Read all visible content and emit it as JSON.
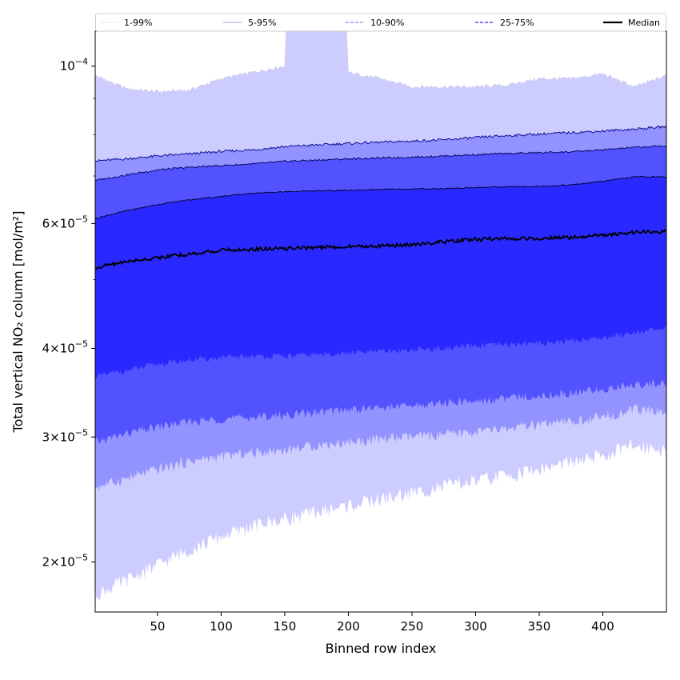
{
  "chart_data": {
    "type": "area",
    "title": "",
    "xlabel": "Binned row index",
    "ylabel": "Total vertical NO₂ column [mol/m²]",
    "xlim": [
      1,
      450
    ],
    "ylim": [
      1.7e-05,
      0.000112
    ],
    "yscale": "log",
    "x_ticks": [
      50,
      100,
      150,
      200,
      250,
      300,
      350,
      400
    ],
    "y_ticks": [
      {
        "value": 0.0001,
        "base": "10",
        "exp": "−4",
        "mant": ""
      },
      {
        "value": 6e-05,
        "mant": "6",
        "base": "10",
        "exp": "−5"
      },
      {
        "value": 4e-05,
        "mant": "4",
        "base": "10",
        "exp": "−5"
      },
      {
        "value": 3e-05,
        "mant": "3",
        "base": "10",
        "exp": "−5"
      },
      {
        "value": 2e-05,
        "mant": "2",
        "base": "10",
        "exp": "−5"
      }
    ],
    "grid": false,
    "legend_position": "top",
    "x": [
      1,
      25,
      50,
      75,
      100,
      125,
      150,
      175,
      200,
      225,
      250,
      275,
      300,
      325,
      350,
      375,
      400,
      425,
      450
    ],
    "series": [
      {
        "name": "1-99%",
        "color": "#ccccff",
        "line_color": "#c8c8d8",
        "lower": [
          1.8e-05,
          1.88e-05,
          1.98e-05,
          2.08e-05,
          2.17e-05,
          2.25e-05,
          2.3e-05,
          2.35e-05,
          2.4e-05,
          2.45e-05,
          2.5e-05,
          2.56e-05,
          2.6e-05,
          2.65e-05,
          2.7e-05,
          2.76e-05,
          2.82e-05,
          2.92e-05,
          2.88e-05
        ],
        "upper": [
          9.7e-05,
          9.3e-05,
          9.2e-05,
          9.25e-05,
          9.6e-05,
          9.8e-05,
          0.0001,
          0.00102,
          9.8e-05,
          9.6e-05,
          9.35e-05,
          9.35e-05,
          9.35e-05,
          9.4e-05,
          9.6e-05,
          9.6e-05,
          9.75e-05,
          9.35e-05,
          9.7e-05
        ]
      },
      {
        "name": "5-95%",
        "color": "#9393ff",
        "line_color": "#00008b",
        "lower": [
          2.55e-05,
          2.62e-05,
          2.7e-05,
          2.77e-05,
          2.82e-05,
          2.85e-05,
          2.88e-05,
          2.92e-05,
          2.95e-05,
          2.98e-05,
          3e-05,
          3.02e-05,
          3.05e-05,
          3.08e-05,
          3.12e-05,
          3.15e-05,
          3.2e-05,
          3.28e-05,
          3.25e-05
        ],
        "upper": [
          7.35e-05,
          7.4e-05,
          7.47e-05,
          7.52e-05,
          7.58e-05,
          7.62e-05,
          7.7e-05,
          7.74e-05,
          7.78e-05,
          7.81e-05,
          7.84e-05,
          7.87e-05,
          7.93e-05,
          7.98e-05,
          8.02e-05,
          8.06e-05,
          8.1e-05,
          8.15e-05,
          8.22e-05
        ]
      },
      {
        "name": "10-90%",
        "color": "#5252ff",
        "line_color": "#00005a",
        "lower": [
          2.95e-05,
          3.03e-05,
          3.1e-05,
          3.15e-05,
          3.18e-05,
          3.2e-05,
          3.22e-05,
          3.25e-05,
          3.28e-05,
          3.3e-05,
          3.32e-05,
          3.35e-05,
          3.37e-05,
          3.4e-05,
          3.43e-05,
          3.46e-05,
          3.5e-05,
          3.56e-05,
          3.57e-05
        ],
        "upper": [
          6.9e-05,
          7.02e-05,
          7.14e-05,
          7.2e-05,
          7.24e-05,
          7.28e-05,
          7.34e-05,
          7.37e-05,
          7.4e-05,
          7.42e-05,
          7.44e-05,
          7.47e-05,
          7.5e-05,
          7.53e-05,
          7.55e-05,
          7.57e-05,
          7.62e-05,
          7.68e-05,
          7.72e-05
        ]
      },
      {
        "name": "25-75%",
        "color": "#2828ff",
        "line_color": "#000020",
        "lower": [
          3.65e-05,
          3.72e-05,
          3.8e-05,
          3.85e-05,
          3.88e-05,
          3.9e-05,
          3.9e-05,
          3.92e-05,
          3.94e-05,
          3.96e-05,
          3.98e-05,
          4e-05,
          4.03e-05,
          4.05e-05,
          4.07e-05,
          4.1e-05,
          4.14e-05,
          4.22e-05,
          4.25e-05
        ],
        "upper": [
          6.1e-05,
          6.25e-05,
          6.38e-05,
          6.48e-05,
          6.55e-05,
          6.62e-05,
          6.65e-05,
          6.67e-05,
          6.68e-05,
          6.7e-05,
          6.71e-05,
          6.72e-05,
          6.74e-05,
          6.76e-05,
          6.77e-05,
          6.8e-05,
          6.88e-05,
          6.98e-05,
          6.98e-05
        ]
      },
      {
        "name": "Median",
        "color": "#000000",
        "line_color": "#000000",
        "values": [
          5.2e-05,
          5.3e-05,
          5.37e-05,
          5.43e-05,
          5.5e-05,
          5.52e-05,
          5.53e-05,
          5.55e-05,
          5.57e-05,
          5.58e-05,
          5.6e-05,
          5.65e-05,
          5.7e-05,
          5.71e-05,
          5.72e-05,
          5.73e-05,
          5.77e-05,
          5.83e-05,
          5.84e-05
        ]
      }
    ]
  }
}
